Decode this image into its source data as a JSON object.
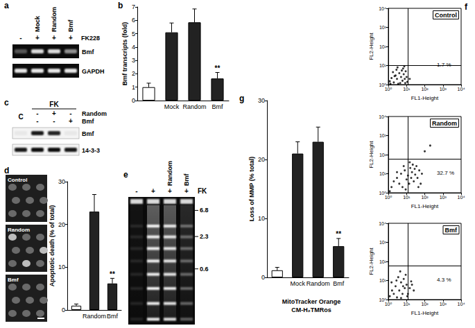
{
  "panel_labels": [
    "a",
    "b",
    "c",
    "d",
    "e",
    "f",
    "g"
  ],
  "chart_data": [
    {
      "type": "bar",
      "ylabel": "Bmf transcripts (fold)",
      "categories": [
        null,
        "Mock",
        "Random",
        "Bmf"
      ],
      "values": [
        1.0,
        5.1,
        5.85,
        1.65
      ],
      "errors": [
        0.3,
        0.7,
        1.0,
        0.45
      ],
      "colors": [
        "#ffffff",
        "#222222",
        "#222222",
        "#222222"
      ],
      "ylim": [
        0,
        7
      ],
      "yticks": [
        0,
        1,
        2,
        3,
        4,
        5,
        6,
        7
      ],
      "grid": false,
      "annotations": [
        {
          "category": "Bmf",
          "text": "**"
        }
      ]
    },
    {
      "type": "bar",
      "ylabel": "Apoptotic death (% of total)",
      "categories": [
        null,
        "Random",
        "Bmf"
      ],
      "values": [
        1.0,
        23,
        6.2
      ],
      "errors": [
        0.4,
        4.0,
        1.2
      ],
      "colors": [
        "#ffffff",
        "#222222",
        "#222222"
      ],
      "ylim": [
        0,
        30
      ],
      "yticks": [
        0,
        10,
        20,
        30
      ],
      "grid": false,
      "annotations": [
        {
          "category": "Bmf",
          "text": "**"
        }
      ]
    },
    {
      "type": "bar",
      "ylabel": "Loss of MMP (% total)",
      "subtitle": "MitoTracker Orange\nCM-H₂TMRos",
      "categories": [
        null,
        "Mock",
        "Random",
        "Bmf"
      ],
      "values": [
        1.2,
        21,
        23,
        5.3
      ],
      "errors": [
        0.5,
        2.0,
        2.5,
        1.3
      ],
      "colors": [
        "#ffffff",
        "#222222",
        "#222222",
        "#222222"
      ],
      "ylim": [
        0,
        30
      ],
      "yticks": [
        0,
        10,
        20,
        30
      ],
      "grid": false,
      "annotations": [
        {
          "category": "Bmf",
          "text": "**"
        }
      ]
    },
    {
      "type": "scatter",
      "title": "Control",
      "xlabel": "FL1-Height",
      "ylabel": "FL2-Height",
      "log": true,
      "xlim": [
        1,
        10000
      ],
      "ylim": [
        1,
        10000
      ],
      "xticks": [
        {
          "value": 1,
          "label": "10⁰"
        },
        {
          "value": 10,
          "label": "10¹"
        },
        {
          "value": 100,
          "label": "10²"
        },
        {
          "value": 1000,
          "label": "10³"
        },
        {
          "value": 10000,
          "label": "10⁴"
        }
      ],
      "yticks": [
        {
          "value": 1,
          "label": "10⁰"
        },
        {
          "value": 10,
          "label": "10¹"
        },
        {
          "value": 100,
          "label": "10²"
        },
        {
          "value": 1000,
          "label": "10³"
        },
        {
          "value": 10000,
          "label": "10⁴"
        }
      ],
      "quadrant": [
        12,
        10
      ],
      "annotations": [
        {
          "text": "1.7 %"
        }
      ],
      "color": "#000000",
      "grid": false,
      "x": [
        1.2,
        1.5,
        2,
        2.5,
        3,
        3.5,
        4,
        5,
        6,
        7,
        8,
        9,
        1.8,
        2.8,
        4.5,
        6.5,
        10,
        11,
        3.2,
        1.3,
        5.5,
        8.5,
        15,
        7.5,
        2.2
      ],
      "values": [
        1.5,
        2.2,
        1.3,
        3,
        2,
        1.1,
        4,
        2.5,
        1.6,
        3.5,
        2,
        5,
        4.5,
        6,
        1.2,
        7,
        2.5,
        1.4,
        8,
        1.1,
        5.5,
        1.2,
        2,
        9,
        2.8
      ]
    },
    {
      "type": "scatter",
      "title": "Random",
      "xlabel": "FL1-Height",
      "ylabel": "FL2-Height",
      "log": true,
      "xlim": [
        1,
        10000
      ],
      "ylim": [
        1,
        10000
      ],
      "xticks": [
        {
          "value": 1,
          "label": "10⁰"
        },
        {
          "value": 10,
          "label": "10¹"
        },
        {
          "value": 100,
          "label": "10²"
        },
        {
          "value": 1000,
          "label": "10³"
        },
        {
          "value": 10000,
          "label": "10⁴"
        }
      ],
      "yticks": [
        {
          "value": 1,
          "label": "10⁰"
        },
        {
          "value": 10,
          "label": "10¹"
        },
        {
          "value": 100,
          "label": "10²"
        },
        {
          "value": 1000,
          "label": "10³"
        },
        {
          "value": 10000,
          "label": "10⁴"
        }
      ],
      "quadrant": [
        12,
        60
      ],
      "annotations": [
        {
          "text": "32.7 %"
        }
      ],
      "color": "#000000",
      "grid": false,
      "x": [
        1.5,
        2,
        3,
        4,
        5,
        6,
        8,
        10,
        12,
        14,
        16,
        18,
        20,
        25,
        30,
        35,
        40,
        50,
        60,
        7,
        3,
        22,
        45,
        28,
        9,
        15,
        70,
        100,
        200,
        1.2
      ],
      "values": [
        2,
        4,
        6,
        3,
        10,
        2,
        15,
        5,
        8,
        3,
        20,
        6,
        12,
        4,
        9,
        25,
        6,
        15,
        3,
        25,
        12,
        30,
        2,
        18,
        1.5,
        40,
        10,
        150,
        300,
        1.2
      ]
    },
    {
      "type": "scatter",
      "title": "Bmf",
      "xlabel": "FL1-Height",
      "ylabel": "FL2-Height",
      "log": true,
      "xlim": [
        1,
        10000
      ],
      "ylim": [
        1,
        10000
      ],
      "xticks": [
        {
          "value": 1,
          "label": "10⁰"
        },
        {
          "value": 10,
          "label": "10¹"
        },
        {
          "value": 100,
          "label": "10²"
        },
        {
          "value": 1000,
          "label": "10³"
        },
        {
          "value": 10000,
          "label": "10⁴"
        }
      ],
      "yticks": [
        {
          "value": 1,
          "label": "10⁰"
        },
        {
          "value": 10,
          "label": "10¹"
        },
        {
          "value": 100,
          "label": "10²"
        },
        {
          "value": 1000,
          "label": "10³"
        },
        {
          "value": 10000,
          "label": "10⁴"
        }
      ],
      "quadrant": [
        12,
        60
      ],
      "annotations": [
        {
          "text": "4.3 %"
        }
      ],
      "color": "#000000",
      "grid": false,
      "x": [
        1.2,
        1.6,
        2,
        2.5,
        3,
        4,
        5,
        6,
        7,
        8,
        10,
        12,
        15,
        18,
        25,
        3.5,
        1.5,
        9,
        5,
        20,
        4.5,
        11,
        2.8,
        6.5
      ],
      "values": [
        1.5,
        3,
        2,
        5,
        1.3,
        3,
        8,
        2,
        12,
        4,
        6,
        2,
        4,
        9,
        3,
        15,
        8,
        20,
        1.2,
        6,
        30,
        1.5,
        10,
        5
      ]
    }
  ],
  "gel_a": {
    "lane_labels": [
      null,
      "Mock",
      "Random",
      "Bmf"
    ],
    "treatment": {
      "label": "FK228",
      "signs": [
        "-",
        "+",
        "+",
        "+"
      ]
    },
    "bands": [
      {
        "label": "Bmf",
        "intensity": [
          0.3,
          0.85,
          0.85,
          0.55
        ]
      },
      {
        "label": "GAPDH",
        "intensity": [
          0.9,
          0.9,
          0.9,
          0.9
        ]
      }
    ]
  },
  "blot_c": {
    "header": "FK",
    "control_label": "C",
    "rows": [
      {
        "label": "Random",
        "signs": [
          null,
          "-",
          "+",
          "-"
        ]
      },
      {
        "label": "Bmf",
        "signs": [
          null,
          "-",
          "-",
          "+"
        ]
      }
    ],
    "bands": [
      {
        "label": "Bmf",
        "intensity": [
          0.05,
          0.9,
          0.85,
          0.05
        ]
      },
      {
        "label": "14-3-3",
        "intensity": [
          0.9,
          0.95,
          0.95,
          0.9
        ]
      }
    ]
  },
  "images_d": {
    "labels": [
      "Control",
      "Random",
      "Bmf"
    ]
  },
  "gel_e": {
    "header": "FK",
    "signs": [
      "-",
      "+",
      "+",
      "+"
    ],
    "lane_labels": [
      null,
      null,
      "Random",
      "Bmf"
    ],
    "intensity": [
      0.1,
      0.95,
      0.9,
      0.35
    ],
    "markers": [
      6.8,
      2.3,
      0.6
    ]
  }
}
